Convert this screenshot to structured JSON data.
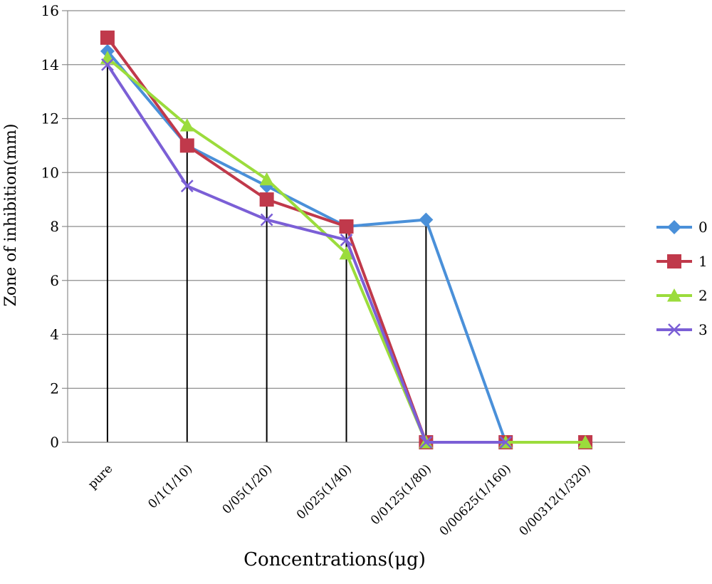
{
  "chart_data": {
    "type": "line",
    "title": "",
    "xlabel": "Concentrations(μg)",
    "ylabel": "Zone of inhibition(mm)",
    "ylim": [
      0,
      16
    ],
    "yticks": [
      "0",
      "2",
      "4",
      "6",
      "8",
      "10",
      "12",
      "14",
      "16"
    ],
    "categories": [
      "pure",
      "0/1(1/10)",
      "0/05(1/20)",
      "0/025(1/40)",
      "0/0125(1/80)",
      "0/00625(1/160)",
      "0/00312(1/320)"
    ],
    "grid": "horizontal",
    "legend_position": "right",
    "drop_lines": true,
    "series": [
      {
        "name": "0",
        "color": "#4a90d9",
        "marker": "diamond",
        "values": [
          14.5,
          11,
          9.5,
          8,
          8.25,
          0,
          null
        ]
      },
      {
        "name": "1",
        "color": "#c0394b",
        "marker": "square",
        "values": [
          15,
          11,
          9,
          8,
          0,
          0,
          0
        ]
      },
      {
        "name": "2",
        "color": "#9bdc3c",
        "marker": "triangle",
        "values": [
          14.25,
          11.75,
          9.75,
          7,
          0,
          0,
          0
        ]
      },
      {
        "name": "3",
        "color": "#7b5fd6",
        "marker": "x",
        "values": [
          14,
          9.5,
          8.25,
          7.5,
          0,
          0,
          null
        ]
      }
    ]
  }
}
